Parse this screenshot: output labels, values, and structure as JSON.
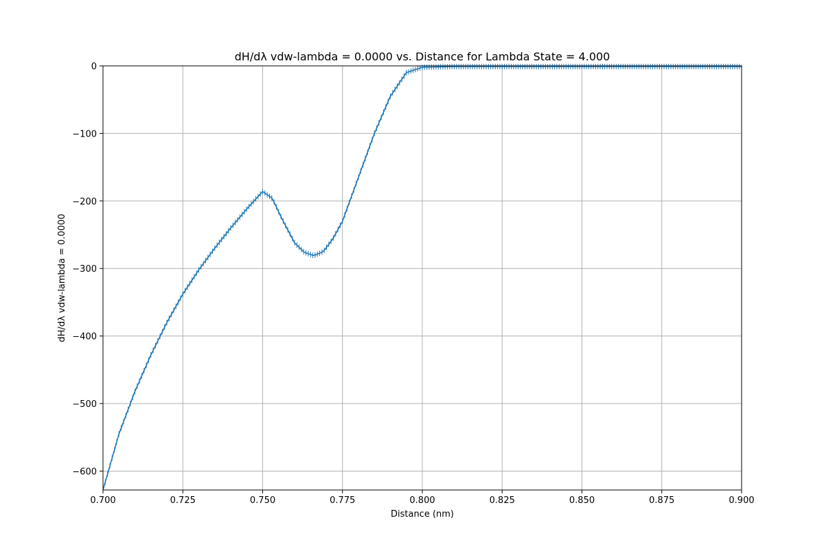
{
  "chart_data": {
    "type": "line",
    "title": "dH/dλ vdw-lambda = 0.0000 vs. Distance for Lambda State = 4.000",
    "xlabel": "Distance (nm)",
    "ylabel": "dH/dλ vdw-lambda = 0.0000",
    "xlim": [
      0.7,
      0.9
    ],
    "ylim": [
      -628,
      0
    ],
    "grid": true,
    "xticks": [
      "0.700",
      "0.725",
      "0.750",
      "0.775",
      "0.800",
      "0.825",
      "0.850",
      "0.875",
      "0.900"
    ],
    "yticks": [
      "0",
      "−100",
      "−200",
      "−300",
      "−400",
      "−500",
      "−600"
    ],
    "series": [
      {
        "color": "#1f77b4",
        "has_error_bars": true,
        "x": [
          0.7,
          0.705,
          0.71,
          0.715,
          0.72,
          0.725,
          0.73,
          0.735,
          0.74,
          0.745,
          0.75,
          0.753,
          0.756,
          0.76,
          0.763,
          0.766,
          0.769,
          0.772,
          0.775,
          0.78,
          0.785,
          0.79,
          0.795,
          0.8,
          0.81,
          0.82,
          0.83,
          0.84,
          0.85,
          0.86,
          0.87,
          0.88,
          0.89,
          0.9
        ],
        "y": [
          -628,
          -545,
          -482,
          -428,
          -380,
          -338,
          -302,
          -270,
          -240,
          -212,
          -186,
          -196,
          -226,
          -262,
          -276,
          -281,
          -275,
          -256,
          -230,
          -165,
          -100,
          -45,
          -10,
          -2,
          -1,
          -1,
          -1,
          -1,
          -1,
          -1,
          -1,
          -1,
          -1,
          -1
        ]
      }
    ]
  }
}
